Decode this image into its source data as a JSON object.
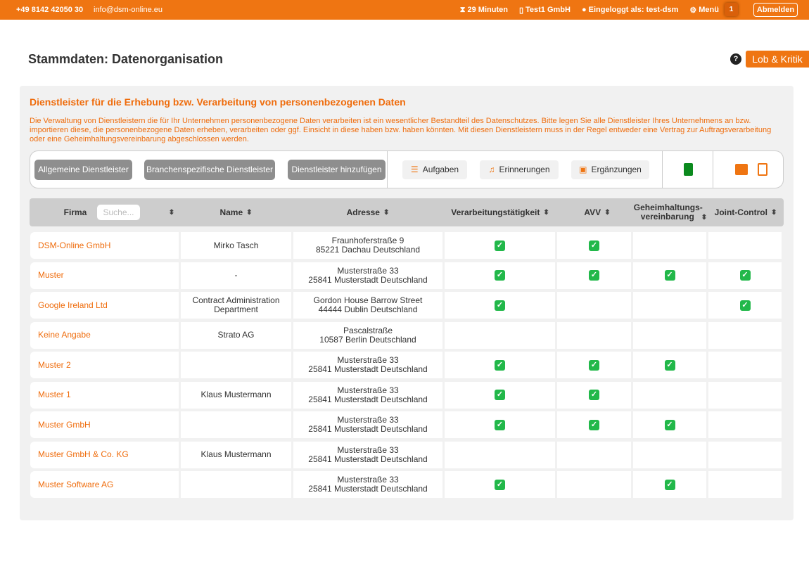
{
  "topbar": {
    "phone": "+49 8142 42050 30",
    "email": "info@dsm-online.eu",
    "timer": "29 Minuten",
    "company": "Test1 GmbH",
    "login": "Eingeloggt als: test-dsm",
    "menu": "Menü",
    "notifications": "1",
    "logout": "Abmelden"
  },
  "page": {
    "title": "Stammdaten: Datenorganisation",
    "help": "?",
    "feedback": "Lob & Kritik"
  },
  "panel": {
    "title": "Dienstleister für die Erhebung bzw. Verarbeitung von personenbezogenen Daten",
    "description": "Die Verwaltung von Dienstleistern die für Ihr Unternehmen personenbezogene Daten verarbeiten ist ein wesentlicher Bestandteil des Datenschutzes. Bitte legen Sie alle Dienstleister Ihres Unternehmens an bzw. importieren diese, die personenbezogene Daten erheben, verarbeiten oder ggf. Einsicht in diese haben bzw. haben könnten. Mit diesen Dienstleistern muss in der Regel entweder eine Vertrag zur Auftragsverarbeitung oder eine Geheimhaltungsvereinbarung abgeschlossen werden."
  },
  "toolbar": {
    "general": "Allgemeine Dienstleister",
    "industry": "Branchenspezifische Dienstleister",
    "add": "Dienstleister hinzufügen",
    "tasks": "Aufgaben",
    "reminders": "Erinnerungen",
    "additions": "Ergänzungen",
    "icons": [
      "clipboard-icon",
      "print-icon",
      "pdf-icon"
    ],
    "accent": "#ef7512"
  },
  "table": {
    "columns": [
      "Firma",
      "Name",
      "Adresse",
      "Verarbeitungstätigkeit",
      "AVV",
      "Geheimhaltungs-vereinbarung",
      "Joint-Control"
    ],
    "search_placeholder": "Suche...",
    "rows": [
      {
        "firma": "DSM-Online GmbH",
        "name": "Mirko Tasch",
        "addr1": "Fraunhoferstraße 9",
        "addr2": "85221 Dachau Deutschland",
        "checks": [
          true,
          true,
          false,
          false
        ]
      },
      {
        "firma": "Muster",
        "name": "-",
        "addr1": "Musterstraße 33",
        "addr2": "25841 Musterstadt Deutschland",
        "checks": [
          true,
          true,
          true,
          true
        ]
      },
      {
        "firma": "Google Ireland Ltd",
        "name": "Contract Administration Department",
        "addr1": "Gordon House Barrow Street",
        "addr2": "44444 Dublin Deutschland",
        "checks": [
          true,
          false,
          false,
          true
        ]
      },
      {
        "firma": "Keine Angabe",
        "name": "Strato AG",
        "addr1": "Pascalstraße",
        "addr2": "10587 Berlin Deutschland",
        "checks": [
          false,
          false,
          false,
          false
        ]
      },
      {
        "firma": "Muster 2",
        "name": "",
        "addr1": "Musterstraße 33",
        "addr2": "25841 Musterstadt Deutschland",
        "checks": [
          true,
          true,
          true,
          false
        ]
      },
      {
        "firma": "Muster 1",
        "name": "Klaus Mustermann",
        "addr1": "Musterstraße 33",
        "addr2": "25841 Musterstadt Deutschland",
        "checks": [
          true,
          true,
          false,
          false
        ]
      },
      {
        "firma": "Muster GmbH",
        "name": "",
        "addr1": "Musterstraße 33",
        "addr2": "25841 Musterstadt Deutschland",
        "checks": [
          true,
          true,
          true,
          false
        ]
      },
      {
        "firma": "Muster GmbH & Co. KG",
        "name": "Klaus Mustermann",
        "addr1": "Musterstraße 33",
        "addr2": "25841 Musterstadt Deutschland",
        "checks": [
          false,
          false,
          false,
          false
        ]
      },
      {
        "firma": "Muster Software AG",
        "name": "",
        "addr1": "Musterstraße 33",
        "addr2": "25841 Musterstadt Deutschland",
        "checks": [
          true,
          false,
          true,
          false
        ]
      }
    ]
  }
}
